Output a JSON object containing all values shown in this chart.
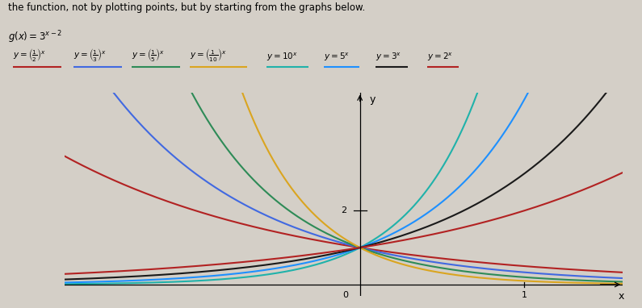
{
  "title_line1": "the function, not by plotting points, but by starting from the graphs below.",
  "title_line2": "g(x) = 3^{x-2}",
  "bases": [
    0.5,
    0.3333,
    0.2,
    0.1,
    10.0,
    5.0,
    3.0,
    2.0
  ],
  "curve_colors": [
    "#b22222",
    "#4169e1",
    "#2e8b57",
    "#daa520",
    "#20b2aa",
    "#1e90ff",
    "#1a1a1a",
    "#b22222"
  ],
  "xmin": -1.8,
  "xmax": 1.6,
  "ymin": -0.3,
  "ymax": 5.2,
  "bg_color": "#d4cfc7"
}
